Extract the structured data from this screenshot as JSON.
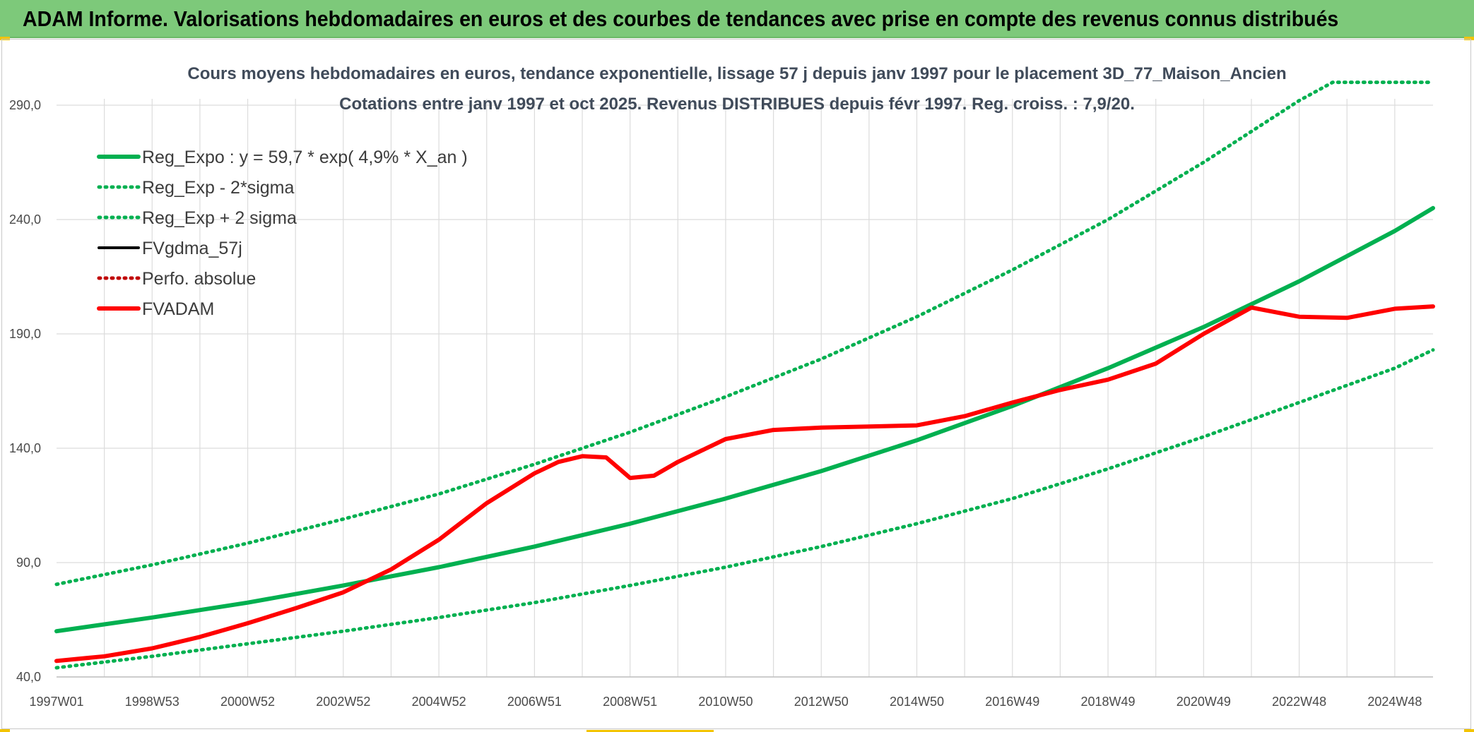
{
  "header": {
    "title": "ADAM Informe. Valorisations hebdomadaires en euros et des courbes de tendances avec prise en compte des revenus connus distribués"
  },
  "colors": {
    "banner": "#7dc97a",
    "accent_corner": "#f2c300",
    "trend_green": "#00b050",
    "fvadam_red": "#ff0000",
    "fvgdma_black": "#000000",
    "perfo_red": "#c00000"
  },
  "chart_data": {
    "type": "line",
    "title": "Cours moyens hebdomadaires en euros, tendance exponentielle, lissage 57 j depuis janv 1997 pour le placement 3D_77_Maison_Ancien",
    "subtitle": "Cotations entre janv 1997 et oct 2025. Revenus DISTRIBUES depuis févr 1997. Reg. croiss. : 7,9/20.",
    "xlabel": "",
    "ylabel": "",
    "ylim": [
      40,
      300
    ],
    "xlim": [
      1997.0,
      2025.8
    ],
    "grid": true,
    "legend_position": "top-left",
    "y_ticks": [
      "40,0",
      "90,0",
      "140,0",
      "190,0",
      "240,0",
      "290,0"
    ],
    "y_tick_values": [
      40,
      90,
      140,
      190,
      240,
      290
    ],
    "x_ticks": [
      "1997W01",
      "1998W53",
      "2000W52",
      "2002W52",
      "2004W52",
      "2006W51",
      "2008W51",
      "2010W50",
      "2012W50",
      "2014W50",
      "2016W49",
      "2018W49",
      "2020W49",
      "2022W48",
      "2024W48"
    ],
    "x_tick_values": [
      1997.0,
      1999.0,
      2001.0,
      2003.0,
      2005.0,
      2007.0,
      2009.0,
      2011.0,
      2013.0,
      2015.0,
      2017.0,
      2019.0,
      2021.0,
      2023.0,
      2025.0
    ],
    "legend": [
      {
        "label": "Reg_Expo : y = 59,7 * exp( 4,9% *  X_an )",
        "color": "#00b050",
        "style": "solid-thick"
      },
      {
        "label": "Reg_Exp - 2*sigma",
        "color": "#00b050",
        "style": "dotted"
      },
      {
        "label": "Reg_Exp + 2 sigma",
        "color": "#00b050",
        "style": "dotted"
      },
      {
        "label": "FVgdma_57j",
        "color": "#000000",
        "style": "solid"
      },
      {
        "label": "Perfo. absolue",
        "color": "#c00000",
        "style": "dotted"
      },
      {
        "label": "FVADAM",
        "color": "#ff0000",
        "style": "solid-thick"
      }
    ],
    "series": [
      {
        "name": "Reg_Expo : y = 59,7 * exp( 4,9% *  X_an )",
        "x": [
          1997,
          1999,
          2001,
          2003,
          2005,
          2007,
          2009,
          2011,
          2013,
          2015,
          2017,
          2019,
          2021,
          2023,
          2025,
          2025.8
        ],
        "values": [
          60.0,
          66.0,
          72.5,
          80.0,
          88.0,
          97.0,
          107.0,
          118.0,
          130.0,
          143.5,
          158.5,
          175.0,
          193.0,
          213.0,
          235.0,
          245.0
        ]
      },
      {
        "name": "Reg_Exp - 2*sigma",
        "x": [
          1997,
          1999,
          2001,
          2003,
          2005,
          2007,
          2009,
          2011,
          2013,
          2015,
          2017,
          2019,
          2021,
          2023,
          2025,
          2025.8
        ],
        "values": [
          44.0,
          49.0,
          54.5,
          60.0,
          66.0,
          72.5,
          80.0,
          88.0,
          97.0,
          107.0,
          118.0,
          131.0,
          145.0,
          160.0,
          175.0,
          183.0
        ]
      },
      {
        "name": "Reg_Exp + 2 sigma",
        "x": [
          1997,
          1999,
          2001,
          2003,
          2005,
          2007,
          2009,
          2011,
          2013,
          2015,
          2017,
          2019,
          2021,
          2023,
          2023.7,
          2025.8
        ],
        "values": [
          80.5,
          89.0,
          98.5,
          109.0,
          120.0,
          133.0,
          147.0,
          162.5,
          179.0,
          197.5,
          218.0,
          240.0,
          265.0,
          292.0,
          300.0,
          300.0
        ]
      },
      {
        "name": "FVADAM",
        "x": [
          1997,
          1998,
          1999,
          2000,
          2001,
          2002,
          2003,
          2004,
          2005,
          2006,
          2007,
          2007.5,
          2008,
          2008.5,
          2009,
          2009.5,
          2010,
          2011,
          2012,
          2013,
          2014,
          2015,
          2016,
          2017,
          2018,
          2019,
          2020,
          2021,
          2022,
          2023,
          2024,
          2025,
          2025.8
        ],
        "values": [
          47.0,
          49.0,
          52.5,
          57.5,
          63.5,
          70.0,
          77.0,
          87.0,
          100.0,
          116.0,
          129.0,
          134.0,
          136.5,
          136.0,
          127.0,
          128.0,
          134.0,
          144.0,
          148.0,
          149.0,
          149.5,
          150.0,
          154.0,
          160.0,
          165.5,
          170.0,
          177.0,
          190.0,
          201.5,
          197.5,
          197.0,
          201.0,
          202.0
        ]
      }
    ]
  }
}
